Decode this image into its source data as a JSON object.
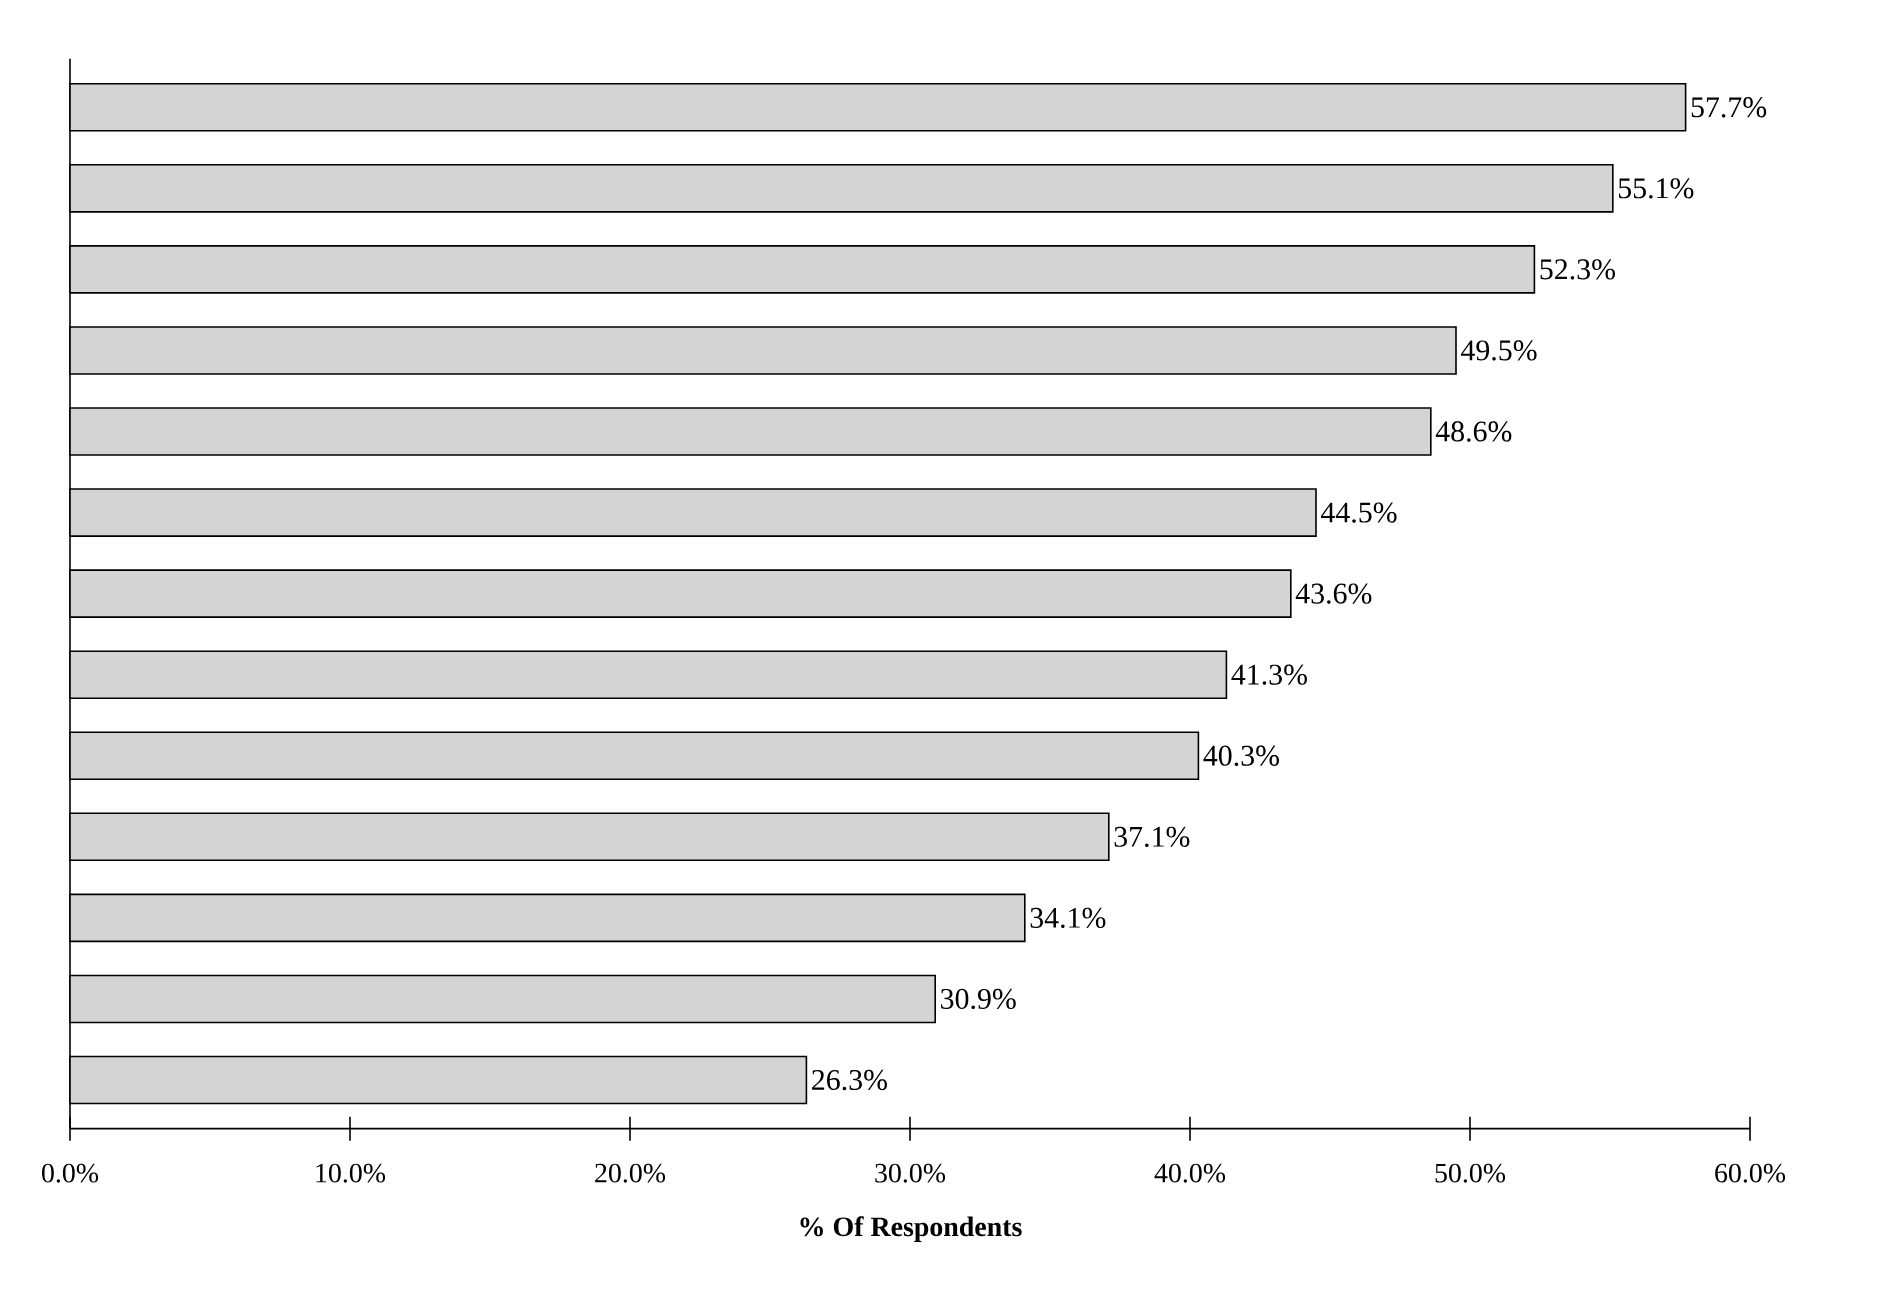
{
  "chart_data": {
    "type": "bar",
    "orientation": "horizontal",
    "xlabel": "% Of Respondents",
    "categories": [
      null,
      null,
      null,
      null,
      null,
      null,
      null,
      null,
      null,
      null,
      null,
      null,
      null
    ],
    "values": [
      57.7,
      55.1,
      52.3,
      49.5,
      48.6,
      44.5,
      43.6,
      41.3,
      40.3,
      37.1,
      34.1,
      30.9,
      26.3
    ],
    "value_labels": [
      "57.7%",
      "55.1%",
      "52.3%",
      "49.5%",
      "48.6%",
      "44.5%",
      "43.6%",
      "41.3%",
      "40.3%",
      "37.1%",
      "34.1%",
      "30.9%",
      "26.3%"
    ],
    "color": "#d4d4d4",
    "xlim": [
      0,
      60
    ],
    "xticks": [
      {
        "value": 0,
        "label": "0.0%"
      },
      {
        "value": 10,
        "label": "10.0%"
      },
      {
        "value": 20,
        "label": "20.0%"
      },
      {
        "value": 30,
        "label": "30.0%"
      },
      {
        "value": 40,
        "label": "40.0%"
      },
      {
        "value": 50,
        "label": "50.0%"
      },
      {
        "value": 60,
        "label": "60.0%"
      }
    ]
  }
}
